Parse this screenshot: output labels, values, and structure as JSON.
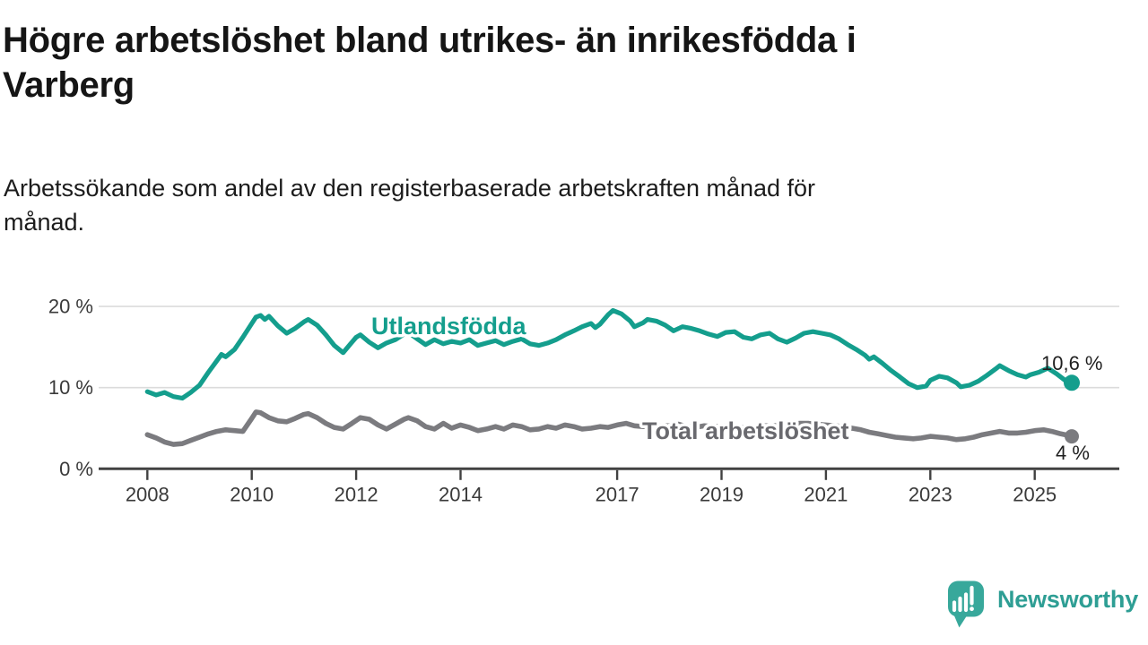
{
  "chart_data": {
    "type": "line",
    "title": "Högre arbetslöshet bland utrikes- än inrikesfödda i\nVarberg",
    "subtitle": "Arbetssökande som andel av den registerbaserade arbetskraften månad för\nmånad.",
    "unit": "%",
    "grid": "horizontal-only",
    "legend_position": "inline-labels",
    "x_range_years": [
      2007.1,
      2026.6
    ],
    "ylim": [
      0,
      21
    ],
    "y_ticks": [
      {
        "value": 0,
        "label": "0 %"
      },
      {
        "value": 10,
        "label": "10 %"
      },
      {
        "value": 20,
        "label": "20 %"
      }
    ],
    "x_ticks": [
      {
        "year": 2008,
        "label": "2008"
      },
      {
        "year": 2010,
        "label": "2010"
      },
      {
        "year": 2012,
        "label": "2012"
      },
      {
        "year": 2014,
        "label": "2014"
      },
      {
        "year": 2017,
        "label": "2017"
      },
      {
        "year": 2019,
        "label": "2019"
      },
      {
        "year": 2021,
        "label": "2021"
      },
      {
        "year": 2023,
        "label": "2023"
      },
      {
        "year": 2025,
        "label": "2025"
      }
    ],
    "series": [
      {
        "name": "Utlandsfödda",
        "color": "#149E8D",
        "label_color": "#149E8D",
        "end_label": "10,6 %",
        "last_value": 10.6,
        "points": [
          [
            2008.0,
            9.5
          ],
          [
            2008.17,
            9.1
          ],
          [
            2008.33,
            9.4
          ],
          [
            2008.5,
            8.9
          ],
          [
            2008.67,
            8.7
          ],
          [
            2008.83,
            9.4
          ],
          [
            2009.0,
            10.3
          ],
          [
            2009.17,
            11.9
          ],
          [
            2009.33,
            13.3
          ],
          [
            2009.42,
            14.1
          ],
          [
            2009.5,
            13.8
          ],
          [
            2009.67,
            14.7
          ],
          [
            2009.83,
            16.2
          ],
          [
            2010.0,
            17.9
          ],
          [
            2010.08,
            18.7
          ],
          [
            2010.17,
            18.9
          ],
          [
            2010.25,
            18.4
          ],
          [
            2010.33,
            18.8
          ],
          [
            2010.5,
            17.6
          ],
          [
            2010.67,
            16.7
          ],
          [
            2010.83,
            17.3
          ],
          [
            2011.0,
            18.1
          ],
          [
            2011.08,
            18.4
          ],
          [
            2011.25,
            17.7
          ],
          [
            2011.42,
            16.5
          ],
          [
            2011.58,
            15.2
          ],
          [
            2011.75,
            14.3
          ],
          [
            2011.92,
            15.6
          ],
          [
            2012.0,
            16.2
          ],
          [
            2012.08,
            16.5
          ],
          [
            2012.25,
            15.6
          ],
          [
            2012.42,
            14.9
          ],
          [
            2012.58,
            15.5
          ],
          [
            2012.75,
            15.9
          ],
          [
            2012.92,
            16.6
          ],
          [
            2013.0,
            16.8
          ],
          [
            2013.17,
            16.0
          ],
          [
            2013.33,
            15.3
          ],
          [
            2013.5,
            15.9
          ],
          [
            2013.67,
            15.4
          ],
          [
            2013.83,
            15.7
          ],
          [
            2014.0,
            15.5
          ],
          [
            2014.17,
            15.9
          ],
          [
            2014.33,
            15.2
          ],
          [
            2014.5,
            15.5
          ],
          [
            2014.67,
            15.8
          ],
          [
            2014.83,
            15.3
          ],
          [
            2015.0,
            15.7
          ],
          [
            2015.17,
            16.0
          ],
          [
            2015.33,
            15.4
          ],
          [
            2015.5,
            15.2
          ],
          [
            2015.67,
            15.5
          ],
          [
            2015.83,
            15.9
          ],
          [
            2016.0,
            16.5
          ],
          [
            2016.17,
            17.0
          ],
          [
            2016.33,
            17.5
          ],
          [
            2016.5,
            17.9
          ],
          [
            2016.58,
            17.4
          ],
          [
            2016.67,
            17.8
          ],
          [
            2016.83,
            19.0
          ],
          [
            2016.92,
            19.5
          ],
          [
            2017.08,
            19.1
          ],
          [
            2017.25,
            18.2
          ],
          [
            2017.33,
            17.5
          ],
          [
            2017.5,
            18.0
          ],
          [
            2017.58,
            18.4
          ],
          [
            2017.75,
            18.2
          ],
          [
            2017.92,
            17.7
          ],
          [
            2018.08,
            17.0
          ],
          [
            2018.25,
            17.5
          ],
          [
            2018.42,
            17.3
          ],
          [
            2018.58,
            17.0
          ],
          [
            2018.75,
            16.6
          ],
          [
            2018.92,
            16.3
          ],
          [
            2019.08,
            16.8
          ],
          [
            2019.25,
            16.9
          ],
          [
            2019.42,
            16.2
          ],
          [
            2019.58,
            16.0
          ],
          [
            2019.75,
            16.5
          ],
          [
            2019.92,
            16.7
          ],
          [
            2020.08,
            16.0
          ],
          [
            2020.25,
            15.6
          ],
          [
            2020.42,
            16.1
          ],
          [
            2020.58,
            16.7
          ],
          [
            2020.75,
            16.9
          ],
          [
            2020.92,
            16.7
          ],
          [
            2021.08,
            16.5
          ],
          [
            2021.25,
            16.0
          ],
          [
            2021.42,
            15.3
          ],
          [
            2021.58,
            14.7
          ],
          [
            2021.75,
            14.0
          ],
          [
            2021.83,
            13.5
          ],
          [
            2021.92,
            13.8
          ],
          [
            2022.08,
            13.0
          ],
          [
            2022.25,
            12.1
          ],
          [
            2022.42,
            11.3
          ],
          [
            2022.58,
            10.5
          ],
          [
            2022.75,
            10.0
          ],
          [
            2022.92,
            10.2
          ],
          [
            2023.0,
            10.9
          ],
          [
            2023.17,
            11.4
          ],
          [
            2023.33,
            11.2
          ],
          [
            2023.5,
            10.6
          ],
          [
            2023.58,
            10.1
          ],
          [
            2023.75,
            10.3
          ],
          [
            2023.92,
            10.8
          ],
          [
            2024.08,
            11.5
          ],
          [
            2024.25,
            12.3
          ],
          [
            2024.33,
            12.7
          ],
          [
            2024.5,
            12.1
          ],
          [
            2024.67,
            11.6
          ],
          [
            2024.83,
            11.3
          ],
          [
            2024.92,
            11.6
          ],
          [
            2025.08,
            11.9
          ],
          [
            2025.25,
            12.4
          ],
          [
            2025.42,
            11.7
          ],
          [
            2025.58,
            10.9
          ],
          [
            2025.67,
            10.4
          ],
          [
            2025.71,
            10.6
          ]
        ]
      },
      {
        "name": "Total arbetslöshet",
        "color": "#7B7B7F",
        "label_color": "#69696E",
        "end_label": "4 %",
        "last_value": 4.0,
        "points": [
          [
            2008.0,
            4.2
          ],
          [
            2008.17,
            3.8
          ],
          [
            2008.33,
            3.3
          ],
          [
            2008.5,
            3.0
          ],
          [
            2008.67,
            3.1
          ],
          [
            2008.83,
            3.5
          ],
          [
            2009.0,
            3.9
          ],
          [
            2009.17,
            4.3
          ],
          [
            2009.33,
            4.6
          ],
          [
            2009.5,
            4.8
          ],
          [
            2009.67,
            4.7
          ],
          [
            2009.83,
            4.6
          ],
          [
            2010.0,
            6.2
          ],
          [
            2010.08,
            7.0
          ],
          [
            2010.17,
            6.9
          ],
          [
            2010.33,
            6.3
          ],
          [
            2010.5,
            5.9
          ],
          [
            2010.67,
            5.8
          ],
          [
            2010.83,
            6.2
          ],
          [
            2011.0,
            6.7
          ],
          [
            2011.08,
            6.8
          ],
          [
            2011.25,
            6.3
          ],
          [
            2011.42,
            5.6
          ],
          [
            2011.58,
            5.1
          ],
          [
            2011.75,
            4.9
          ],
          [
            2011.92,
            5.6
          ],
          [
            2012.08,
            6.3
          ],
          [
            2012.25,
            6.1
          ],
          [
            2012.42,
            5.4
          ],
          [
            2012.58,
            4.9
          ],
          [
            2012.75,
            5.5
          ],
          [
            2012.92,
            6.1
          ],
          [
            2013.0,
            6.3
          ],
          [
            2013.17,
            5.9
          ],
          [
            2013.33,
            5.2
          ],
          [
            2013.5,
            4.9
          ],
          [
            2013.67,
            5.6
          ],
          [
            2013.83,
            5.0
          ],
          [
            2014.0,
            5.4
          ],
          [
            2014.17,
            5.1
          ],
          [
            2014.33,
            4.7
          ],
          [
            2014.5,
            4.9
          ],
          [
            2014.67,
            5.2
          ],
          [
            2014.83,
            4.9
          ],
          [
            2015.0,
            5.4
          ],
          [
            2015.17,
            5.2
          ],
          [
            2015.33,
            4.8
          ],
          [
            2015.5,
            4.9
          ],
          [
            2015.67,
            5.2
          ],
          [
            2015.83,
            5.0
          ],
          [
            2016.0,
            5.4
          ],
          [
            2016.17,
            5.2
          ],
          [
            2016.33,
            4.9
          ],
          [
            2016.5,
            5.0
          ],
          [
            2016.67,
            5.2
          ],
          [
            2016.83,
            5.1
          ],
          [
            2017.0,
            5.4
          ],
          [
            2017.17,
            5.6
          ],
          [
            2017.33,
            5.3
          ],
          [
            2017.5,
            5.2
          ],
          [
            2017.67,
            5.4
          ],
          [
            2017.83,
            5.3
          ],
          [
            2018.0,
            5.3
          ],
          [
            2018.17,
            5.5
          ],
          [
            2018.33,
            5.2
          ],
          [
            2018.5,
            5.1
          ],
          [
            2018.67,
            5.3
          ],
          [
            2018.83,
            5.2
          ],
          [
            2019.0,
            5.2
          ],
          [
            2019.17,
            5.4
          ],
          [
            2019.33,
            5.1
          ],
          [
            2019.5,
            5.0
          ],
          [
            2019.67,
            5.2
          ],
          [
            2019.83,
            5.3
          ],
          [
            2020.0,
            5.3
          ],
          [
            2020.17,
            5.4
          ],
          [
            2020.33,
            5.5
          ],
          [
            2020.5,
            5.6
          ],
          [
            2020.67,
            5.6
          ],
          [
            2020.83,
            5.5
          ],
          [
            2021.0,
            5.4
          ],
          [
            2021.17,
            5.3
          ],
          [
            2021.33,
            5.2
          ],
          [
            2021.5,
            5.0
          ],
          [
            2021.67,
            4.8
          ],
          [
            2021.83,
            4.5
          ],
          [
            2022.0,
            4.3
          ],
          [
            2022.17,
            4.1
          ],
          [
            2022.33,
            3.9
          ],
          [
            2022.5,
            3.8
          ],
          [
            2022.67,
            3.7
          ],
          [
            2022.83,
            3.8
          ],
          [
            2023.0,
            4.0
          ],
          [
            2023.17,
            3.9
          ],
          [
            2023.33,
            3.8
          ],
          [
            2023.5,
            3.6
          ],
          [
            2023.67,
            3.7
          ],
          [
            2023.83,
            3.9
          ],
          [
            2024.0,
            4.2
          ],
          [
            2024.17,
            4.4
          ],
          [
            2024.33,
            4.6
          ],
          [
            2024.5,
            4.4
          ],
          [
            2024.67,
            4.4
          ],
          [
            2024.83,
            4.5
          ],
          [
            2025.0,
            4.7
          ],
          [
            2025.17,
            4.8
          ],
          [
            2025.33,
            4.6
          ],
          [
            2025.5,
            4.3
          ],
          [
            2025.58,
            4.2
          ],
          [
            2025.71,
            4.0
          ]
        ]
      }
    ]
  },
  "branding": {
    "logo_text": "Newsworthy",
    "brand_color": "#2E9E94",
    "logo_mark_color": "#38A89B"
  }
}
